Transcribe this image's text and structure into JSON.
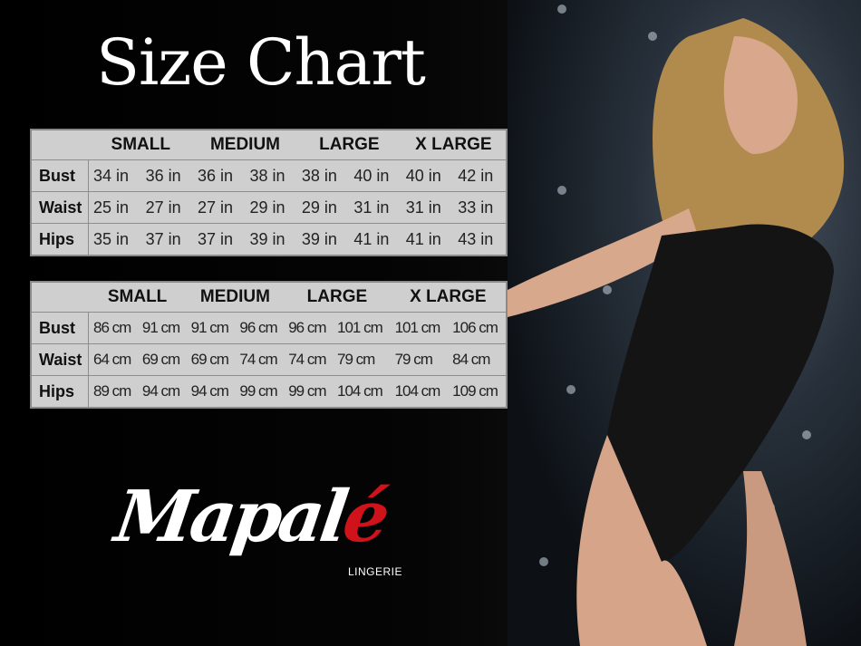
{
  "title": "Size Chart",
  "sizes": [
    "SMALL",
    "MEDIUM",
    "LARGE",
    "X LARGE"
  ],
  "inches": {
    "rows": [
      {
        "label": "Bust",
        "values": [
          "34 in",
          "36 in",
          "36 in",
          "38 in",
          "38 in",
          "40 in",
          "40 in",
          "42 in"
        ]
      },
      {
        "label": "Waist",
        "values": [
          "25 in",
          "27 in",
          "27 in",
          "29 in",
          "29 in",
          "31 in",
          "31 in",
          "33 in"
        ]
      },
      {
        "label": "Hips",
        "values": [
          "35 in",
          "37 in",
          "37 in",
          "39 in",
          "39 in",
          "41 in",
          "41 in",
          "43 in"
        ]
      }
    ]
  },
  "cm": {
    "rows": [
      {
        "label": "Bust",
        "values": [
          "86 cm",
          "91 cm",
          "91 cm",
          "96 cm",
          "96 cm",
          "101 cm",
          "101 cm",
          "106 cm"
        ]
      },
      {
        "label": "Waist",
        "values": [
          "64 cm",
          "69 cm",
          "69 cm",
          "74 cm",
          "74 cm",
          "79 cm",
          "79 cm",
          "84 cm"
        ]
      },
      {
        "label": "Hips",
        "values": [
          "89 cm",
          "94 cm",
          "94 cm",
          "99 cm",
          "99 cm",
          "104 cm",
          "104 cm",
          "109 cm"
        ]
      }
    ]
  },
  "brand": {
    "name_main": "Mapal",
    "name_accent": "é",
    "subtitle": "LINGERIE",
    "accent_color": "#d0121b"
  }
}
